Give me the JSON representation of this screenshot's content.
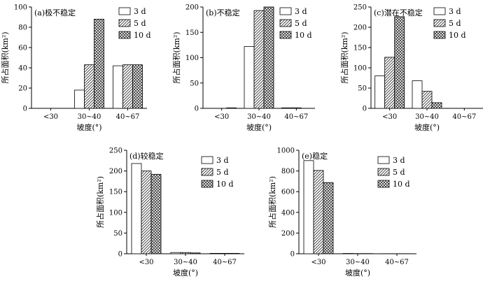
{
  "legend": [
    "3 d",
    "5 d",
    "10 d"
  ],
  "chart_data": [
    {
      "type": "bar",
      "title": "(a)极不稳定",
      "xlabel": "坡度(°)",
      "ylabel": "所占面积(km²)",
      "categories": [
        "<30",
        "30~40",
        "40~67"
      ],
      "ylim": [
        0,
        100
      ],
      "yticks": [
        0,
        20,
        40,
        60,
        80,
        100
      ],
      "legend_position": "top-right",
      "series": [
        {
          "name": "3 d",
          "values": [
            0,
            18,
            42
          ]
        },
        {
          "name": "5 d",
          "values": [
            0,
            43,
            43
          ]
        },
        {
          "name": "10 d",
          "values": [
            0,
            88,
            43
          ]
        }
      ]
    },
    {
      "type": "bar",
      "title": "(b)不稳定",
      "xlabel": "坡度(°)",
      "ylabel": "所占面积(km²)",
      "categories": [
        "<30",
        "30~40",
        "40~67"
      ],
      "ylim": [
        0,
        200
      ],
      "yticks": [
        0,
        50,
        100,
        150,
        200
      ],
      "legend_position": "top-right",
      "series": [
        {
          "name": "3 d",
          "values": [
            0,
            122,
            1
          ]
        },
        {
          "name": "5 d",
          "values": [
            0,
            193,
            1
          ]
        },
        {
          "name": "10 d",
          "values": [
            1,
            200,
            0
          ]
        }
      ]
    },
    {
      "type": "bar",
      "title": "(c)潜在不稳定",
      "xlabel": "坡度(°)",
      "ylabel": "所占面积(km²)",
      "categories": [
        "<30",
        "30~40",
        "40~67"
      ],
      "ylim": [
        0,
        250
      ],
      "yticks": [
        0,
        50,
        100,
        150,
        200,
        250
      ],
      "legend_position": "top-right",
      "series": [
        {
          "name": "3 d",
          "values": [
            80,
            68,
            0
          ]
        },
        {
          "name": "5 d",
          "values": [
            126,
            42,
            0
          ]
        },
        {
          "name": "10 d",
          "values": [
            226,
            14,
            0
          ]
        }
      ]
    },
    {
      "type": "bar",
      "title": "(d)较稳定",
      "xlabel": "坡度(°)",
      "ylabel": "所占面积(km²)",
      "categories": [
        "<30",
        "30~40",
        "40~67"
      ],
      "ylim": [
        0,
        250
      ],
      "yticks": [
        0,
        50,
        100,
        150,
        200,
        250
      ],
      "legend_position": "top-right",
      "series": [
        {
          "name": "3 d",
          "values": [
            218,
            3,
            1
          ]
        },
        {
          "name": "5 d",
          "values": [
            200,
            3,
            1
          ]
        },
        {
          "name": "10 d",
          "values": [
            192,
            2,
            1
          ]
        }
      ]
    },
    {
      "type": "bar",
      "title": "(e)稳定",
      "xlabel": "坡度(°)",
      "ylabel": "所占面积(km²)",
      "categories": [
        "<30",
        "30~40",
        "40~67"
      ],
      "ylim": [
        0,
        1000
      ],
      "yticks": [
        0,
        200,
        400,
        600,
        800,
        1000
      ],
      "legend_position": "top-right",
      "series": [
        {
          "name": "3 d",
          "values": [
            900,
            3,
            1
          ]
        },
        {
          "name": "5 d",
          "values": [
            805,
            2,
            1
          ]
        },
        {
          "name": "10 d",
          "values": [
            688,
            2,
            1
          ]
        }
      ]
    }
  ]
}
